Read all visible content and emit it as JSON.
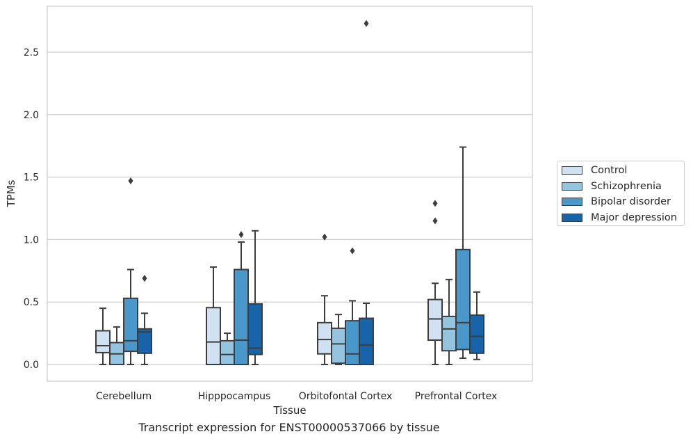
{
  "caption": "Transcript expression for ENST00000537066 by tissue",
  "chart_data": {
    "type": "boxplot",
    "xlabel": "Tissue",
    "ylabel": "TPMs",
    "ylim": [
      -0.13,
      2.88
    ],
    "yticks": [
      "0.0",
      "0.5",
      "1.0",
      "1.5",
      "2.0",
      "2.5"
    ],
    "ytick_values": [
      0.0,
      0.5,
      1.0,
      1.5,
      2.0,
      2.5
    ],
    "grid": true,
    "legend_position": "outside-right",
    "categories": [
      "Cerebellum",
      "Hipppocampus",
      "Orbitofontal Cortex",
      "Prefrontal Cortex"
    ],
    "series": [
      {
        "name": "Control",
        "color": "#d0e1f2",
        "boxes": [
          {
            "whislo": 0.0,
            "q1": 0.095,
            "med": 0.15,
            "q3": 0.27,
            "whishi": 0.45,
            "fliers": []
          },
          {
            "whislo": 0.0,
            "q1": 0.0,
            "med": 0.18,
            "q3": 0.455,
            "whishi": 0.78,
            "fliers": []
          },
          {
            "whislo": 0.0,
            "q1": 0.085,
            "med": 0.2,
            "q3": 0.335,
            "whishi": 0.55,
            "fliers": [
              1.02
            ]
          },
          {
            "whislo": 0.0,
            "q1": 0.195,
            "med": 0.365,
            "q3": 0.52,
            "whishi": 0.65,
            "fliers": [
              1.15,
              1.29
            ]
          }
        ]
      },
      {
        "name": "Schizophrenia",
        "color": "#94c4df",
        "boxes": [
          {
            "whislo": 0.0,
            "q1": 0.0,
            "med": 0.085,
            "q3": 0.175,
            "whishi": 0.3,
            "fliers": []
          },
          {
            "whislo": 0.0,
            "q1": 0.0,
            "med": 0.08,
            "q3": 0.19,
            "whishi": 0.25,
            "fliers": []
          },
          {
            "whislo": 0.0,
            "q1": 0.01,
            "med": 0.165,
            "q3": 0.29,
            "whishi": 0.4,
            "fliers": []
          },
          {
            "whislo": 0.0,
            "q1": 0.11,
            "med": 0.285,
            "q3": 0.385,
            "whishi": 0.68,
            "fliers": []
          }
        ]
      },
      {
        "name": "Bipolar disorder",
        "color": "#4a98c9",
        "boxes": [
          {
            "whislo": 0.0,
            "q1": 0.105,
            "med": 0.19,
            "q3": 0.53,
            "whishi": 0.76,
            "fliers": [
              1.47
            ]
          },
          {
            "whislo": 0.0,
            "q1": 0.0,
            "med": 0.195,
            "q3": 0.76,
            "whishi": 0.98,
            "fliers": [
              1.04
            ]
          },
          {
            "whislo": 0.0,
            "q1": 0.0,
            "med": 0.085,
            "q3": 0.35,
            "whishi": 0.51,
            "fliers": [
              0.91
            ]
          },
          {
            "whislo": 0.05,
            "q1": 0.12,
            "med": 0.335,
            "q3": 0.92,
            "whishi": 1.74,
            "fliers": []
          }
        ]
      },
      {
        "name": "Major depression",
        "color": "#1764ab",
        "boxes": [
          {
            "whislo": 0.0,
            "q1": 0.09,
            "med": 0.26,
            "q3": 0.285,
            "whishi": 0.41,
            "fliers": [
              0.69
            ]
          },
          {
            "whislo": 0.0,
            "q1": 0.08,
            "med": 0.13,
            "q3": 0.485,
            "whishi": 1.07,
            "fliers": []
          },
          {
            "whislo": 0.0,
            "q1": 0.0,
            "med": 0.155,
            "q3": 0.37,
            "whishi": 0.49,
            "fliers": [
              2.73
            ]
          },
          {
            "whislo": 0.04,
            "q1": 0.09,
            "med": 0.225,
            "q3": 0.395,
            "whishi": 0.58,
            "fliers": []
          }
        ]
      }
    ]
  }
}
